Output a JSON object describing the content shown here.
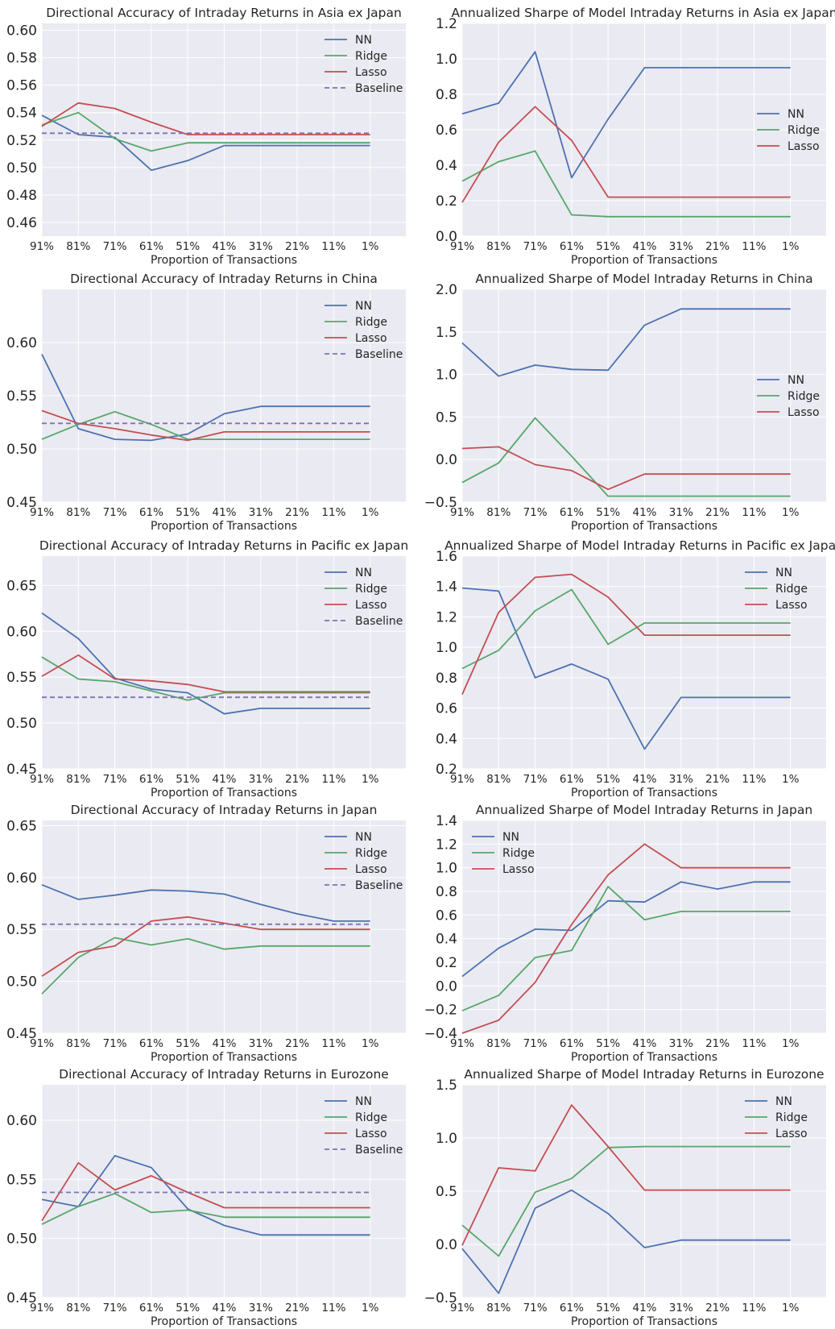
{
  "colors": {
    "NN": "#4c72b0",
    "Ridge": "#55a868",
    "Lasso": "#c44e52",
    "Baseline": "#8172b2",
    "plot_bg": "#eaeaf2",
    "grid": "#ffffff"
  },
  "categories": [
    "91%",
    "81%",
    "71%",
    "61%",
    "51%",
    "41%",
    "31%",
    "21%",
    "11%",
    "1%"
  ],
  "chart_data": [
    {
      "type": "line",
      "title": "Directional Accuracy of Intraday Returns in Asia ex Japan",
      "xlabel": "Proportion of Transactions",
      "ylim": [
        0.45,
        0.605
      ],
      "yticks": [
        0.46,
        0.48,
        0.5,
        0.52,
        0.54,
        0.56,
        0.58,
        0.6
      ],
      "ytick_labels": [
        "0.46",
        "0.48",
        "0.50",
        "0.52",
        "0.54",
        "0.56",
        "0.58",
        "0.60"
      ],
      "legend": "top-right",
      "series": [
        {
          "name": "NN",
          "values": [
            0.538,
            0.524,
            0.522,
            0.498,
            0.505,
            0.516,
            0.516,
            0.516,
            0.516,
            0.516
          ]
        },
        {
          "name": "Ridge",
          "values": [
            0.531,
            0.54,
            0.521,
            0.512,
            0.518,
            0.518,
            0.518,
            0.518,
            0.518,
            0.518
          ]
        },
        {
          "name": "Lasso",
          "values": [
            0.53,
            0.547,
            0.543,
            0.533,
            0.524,
            0.524,
            0.524,
            0.524,
            0.524,
            0.524
          ]
        },
        {
          "name": "Baseline",
          "dashed": true,
          "values": [
            0.525,
            0.525,
            0.525,
            0.525,
            0.525,
            0.525,
            0.525,
            0.525,
            0.525,
            0.525
          ]
        }
      ]
    },
    {
      "type": "line",
      "title": "Annualized Sharpe of Model Intraday Returns in Asia ex Japan",
      "xlabel": "Proportion of Transactions",
      "ylim": [
        0.0,
        1.2
      ],
      "yticks": [
        0.0,
        0.2,
        0.4,
        0.6,
        0.8,
        1.0,
        1.2
      ],
      "ytick_labels": [
        "0.0",
        "0.2",
        "0.4",
        "0.6",
        "0.8",
        "1.0",
        "1.2"
      ],
      "legend": "center-right",
      "series": [
        {
          "name": "NN",
          "values": [
            0.69,
            0.75,
            1.04,
            0.33,
            0.66,
            0.95,
            0.95,
            0.95,
            0.95,
            0.95
          ]
        },
        {
          "name": "Ridge",
          "values": [
            0.31,
            0.42,
            0.48,
            0.12,
            0.11,
            0.11,
            0.11,
            0.11,
            0.11,
            0.11
          ]
        },
        {
          "name": "Lasso",
          "values": [
            0.19,
            0.53,
            0.73,
            0.54,
            0.22,
            0.22,
            0.22,
            0.22,
            0.22,
            0.22
          ]
        }
      ]
    },
    {
      "type": "line",
      "title": "Directional Accuracy of Intraday Returns in China",
      "xlabel": "Proportion of Transactions",
      "ylim": [
        0.45,
        0.65
      ],
      "yticks": [
        0.45,
        0.5,
        0.55,
        0.6
      ],
      "ytick_labels": [
        "0.45",
        "0.50",
        "0.55",
        "0.60"
      ],
      "legend": "top-right",
      "series": [
        {
          "name": "NN",
          "values": [
            0.589,
            0.519,
            0.509,
            0.508,
            0.514,
            0.533,
            0.54,
            0.54,
            0.54,
            0.54
          ]
        },
        {
          "name": "Ridge",
          "values": [
            0.509,
            0.523,
            0.535,
            0.523,
            0.509,
            0.509,
            0.509,
            0.509,
            0.509,
            0.509
          ]
        },
        {
          "name": "Lasso",
          "values": [
            0.536,
            0.524,
            0.519,
            0.513,
            0.508,
            0.516,
            0.516,
            0.516,
            0.516,
            0.516
          ]
        },
        {
          "name": "Baseline",
          "dashed": true,
          "values": [
            0.524,
            0.524,
            0.524,
            0.524,
            0.524,
            0.524,
            0.524,
            0.524,
            0.524,
            0.524
          ]
        }
      ]
    },
    {
      "type": "line",
      "title": "Annualized Sharpe of Model Intraday Returns in China",
      "xlabel": "Proportion of Transactions",
      "ylim": [
        -0.5,
        2.0
      ],
      "yticks": [
        -0.5,
        0.0,
        0.5,
        1.0,
        1.5,
        2.0
      ],
      "ytick_labels": [
        "−0.5",
        "0.0",
        "0.5",
        "1.0",
        "1.5",
        "2.0"
      ],
      "legend": "center-right",
      "series": [
        {
          "name": "NN",
          "values": [
            1.37,
            0.98,
            1.11,
            1.06,
            1.05,
            1.58,
            1.77,
            1.77,
            1.77,
            1.77
          ]
        },
        {
          "name": "Ridge",
          "values": [
            -0.27,
            -0.04,
            0.49,
            0.04,
            -0.43,
            -0.43,
            -0.43,
            -0.43,
            -0.43,
            -0.43
          ]
        },
        {
          "name": "Lasso",
          "values": [
            0.13,
            0.15,
            -0.06,
            -0.13,
            -0.35,
            -0.17,
            -0.17,
            -0.17,
            -0.17,
            -0.17
          ]
        }
      ]
    },
    {
      "type": "line",
      "title": "Directional Accuracy of Intraday Returns in Pacific ex Japan",
      "xlabel": "Proportion of Transactions",
      "ylim": [
        0.45,
        0.682
      ],
      "yticks": [
        0.45,
        0.5,
        0.55,
        0.6,
        0.65
      ],
      "ytick_labels": [
        "0.45",
        "0.50",
        "0.55",
        "0.60",
        "0.65"
      ],
      "legend": "top-right",
      "series": [
        {
          "name": "NN",
          "values": [
            0.62,
            0.592,
            0.549,
            0.537,
            0.533,
            0.51,
            0.516,
            0.516,
            0.516,
            0.516
          ]
        },
        {
          "name": "Ridge",
          "values": [
            0.572,
            0.548,
            0.545,
            0.535,
            0.525,
            0.533,
            0.533,
            0.533,
            0.533,
            0.533
          ]
        },
        {
          "name": "Lasso",
          "values": [
            0.551,
            0.574,
            0.548,
            0.546,
            0.542,
            0.534,
            0.534,
            0.534,
            0.534,
            0.534
          ]
        },
        {
          "name": "Baseline",
          "dashed": true,
          "values": [
            0.528,
            0.528,
            0.528,
            0.528,
            0.528,
            0.528,
            0.528,
            0.528,
            0.528,
            0.528
          ]
        }
      ]
    },
    {
      "type": "line",
      "title": "Annualized Sharpe of Model Intraday Returns in Pacific ex Japan",
      "xlabel": "Proportion of Transactions",
      "ylim": [
        0.2,
        1.6
      ],
      "yticks": [
        0.2,
        0.4,
        0.6,
        0.8,
        1.0,
        1.2,
        1.4,
        1.6
      ],
      "ytick_labels": [
        "0.2",
        "0.4",
        "0.6",
        "0.8",
        "1.0",
        "1.2",
        "1.4",
        "1.6"
      ],
      "legend": "top-right",
      "series": [
        {
          "name": "NN",
          "values": [
            1.39,
            1.37,
            0.8,
            0.89,
            0.79,
            0.33,
            0.67,
            0.67,
            0.67,
            0.67
          ]
        },
        {
          "name": "Ridge",
          "values": [
            0.86,
            0.98,
            1.24,
            1.38,
            1.02,
            1.16,
            1.16,
            1.16,
            1.16,
            1.16
          ]
        },
        {
          "name": "Lasso",
          "values": [
            0.69,
            1.23,
            1.46,
            1.48,
            1.33,
            1.08,
            1.08,
            1.08,
            1.08,
            1.08
          ]
        }
      ]
    },
    {
      "type": "line",
      "title": "Directional Accuracy of Intraday Returns in Japan",
      "xlabel": "Proportion of Transactions",
      "ylim": [
        0.45,
        0.655
      ],
      "yticks": [
        0.45,
        0.5,
        0.55,
        0.6,
        0.65
      ],
      "ytick_labels": [
        "0.45",
        "0.50",
        "0.55",
        "0.60",
        "0.65"
      ],
      "legend": "top-right",
      "series": [
        {
          "name": "NN",
          "values": [
            0.593,
            0.579,
            0.583,
            0.588,
            0.587,
            0.584,
            0.574,
            0.565,
            0.558,
            0.558
          ]
        },
        {
          "name": "Ridge",
          "values": [
            0.488,
            0.523,
            0.542,
            0.535,
            0.541,
            0.531,
            0.534,
            0.534,
            0.534,
            0.534
          ]
        },
        {
          "name": "Lasso",
          "values": [
            0.505,
            0.528,
            0.534,
            0.558,
            0.562,
            0.556,
            0.55,
            0.55,
            0.55,
            0.55
          ]
        },
        {
          "name": "Baseline",
          "dashed": true,
          "values": [
            0.555,
            0.555,
            0.555,
            0.555,
            0.555,
            0.555,
            0.555,
            0.555,
            0.555,
            0.555
          ]
        }
      ]
    },
    {
      "type": "line",
      "title": "Annualized Sharpe of Model Intraday Returns in Japan",
      "xlabel": "Proportion of Transactions",
      "ylim": [
        -0.4,
        1.4
      ],
      "yticks": [
        -0.4,
        -0.2,
        0.0,
        0.2,
        0.4,
        0.6,
        0.8,
        1.0,
        1.2,
        1.4
      ],
      "ytick_labels": [
        "−0.4",
        "−0.2",
        "0.0",
        "0.2",
        "0.4",
        "0.6",
        "0.8",
        "1.0",
        "1.2",
        "1.4"
      ],
      "legend": "top-left",
      "series": [
        {
          "name": "NN",
          "values": [
            0.08,
            0.32,
            0.48,
            0.47,
            0.72,
            0.71,
            0.88,
            0.82,
            0.88,
            0.88
          ]
        },
        {
          "name": "Ridge",
          "values": [
            -0.21,
            -0.08,
            0.24,
            0.3,
            0.84,
            0.56,
            0.63,
            0.63,
            0.63,
            0.63
          ]
        },
        {
          "name": "Lasso",
          "values": [
            -0.4,
            -0.29,
            0.03,
            0.52,
            0.94,
            1.2,
            1.0,
            1.0,
            1.0,
            1.0
          ]
        }
      ]
    },
    {
      "type": "line",
      "title": "Directional Accuracy of Intraday Returns in Eurozone",
      "xlabel": "Proportion of Transactions",
      "ylim": [
        0.45,
        0.63
      ],
      "yticks": [
        0.45,
        0.5,
        0.55,
        0.6
      ],
      "ytick_labels": [
        "0.45",
        "0.50",
        "0.55",
        "0.60"
      ],
      "legend": "top-right",
      "series": [
        {
          "name": "NN",
          "values": [
            0.533,
            0.527,
            0.57,
            0.56,
            0.525,
            0.511,
            0.503,
            0.503,
            0.503,
            0.503
          ]
        },
        {
          "name": "Ridge",
          "values": [
            0.512,
            0.527,
            0.538,
            0.522,
            0.524,
            0.518,
            0.518,
            0.518,
            0.518,
            0.518
          ]
        },
        {
          "name": "Lasso",
          "values": [
            0.515,
            0.564,
            0.541,
            0.553,
            0.539,
            0.526,
            0.526,
            0.526,
            0.526,
            0.526
          ]
        },
        {
          "name": "Baseline",
          "dashed": true,
          "values": [
            0.539,
            0.539,
            0.539,
            0.539,
            0.539,
            0.539,
            0.539,
            0.539,
            0.539,
            0.539
          ]
        }
      ]
    },
    {
      "type": "line",
      "title": "Annualized Sharpe of Model Intraday Returns in Eurozone",
      "xlabel": "Proportion of Transactions",
      "ylim": [
        -0.5,
        1.5
      ],
      "yticks": [
        -0.5,
        0.0,
        0.5,
        1.0,
        1.5
      ],
      "ytick_labels": [
        "−0.5",
        "0.0",
        "0.5",
        "1.0",
        "1.5"
      ],
      "legend": "top-right",
      "series": [
        {
          "name": "NN",
          "values": [
            -0.04,
            -0.46,
            0.34,
            0.51,
            0.29,
            -0.03,
            0.04,
            0.04,
            0.04,
            0.04
          ]
        },
        {
          "name": "Ridge",
          "values": [
            0.18,
            -0.11,
            0.49,
            0.62,
            0.91,
            0.92,
            0.92,
            0.92,
            0.92,
            0.92
          ]
        },
        {
          "name": "Lasso",
          "values": [
            -0.01,
            0.72,
            0.69,
            1.31,
            0.92,
            0.51,
            0.51,
            0.51,
            0.51,
            0.51
          ]
        }
      ]
    }
  ]
}
